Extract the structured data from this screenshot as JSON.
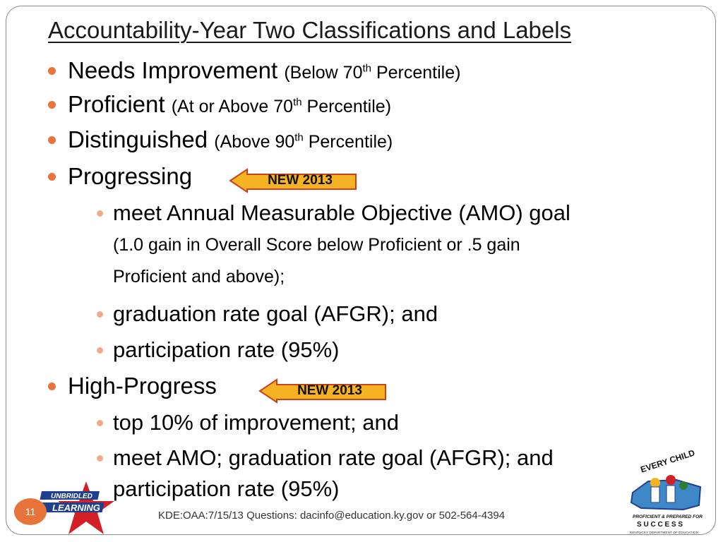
{
  "slide": {
    "title": "Accountability-Year Two Classifications and Labels",
    "bullets": [
      {
        "main": "Needs Improvement",
        "sub_pre": "(Below 70",
        "sup": "th",
        "sub_post": " Percentile)"
      },
      {
        "main": "Proficient",
        "sub_pre": "(At or Above 70",
        "sup": "th",
        "sub_post": " Percentile)"
      },
      {
        "main": "Distinguished",
        "sub_pre": "(Above 90",
        "sup": "th",
        "sub_post": " Percentile)"
      },
      {
        "main": "Progressing",
        "badge": "NEW 2013"
      },
      {
        "main": "High-Progress",
        "badge": "NEW 2013"
      }
    ],
    "progressing_items": [
      "meet Annual Measurable Objective (AMO) goal",
      "graduation rate goal (AFGR); and",
      "participation rate (95%)"
    ],
    "progressing_note_line1": "(1.0 gain in Overall Score below Proficient or .5 gain",
    "progressing_note_line2": "Proficient and above);",
    "high_progress_items": [
      "top 10% of improvement; and",
      "meet AMO; graduation rate goal (AFGR); and"
    ],
    "high_progress_continuation": "participation rate (95%)"
  },
  "footer": {
    "text": "KDE:OAA:7/15/13  Questions: dacinfo@education.ky.gov or 502-564-4394",
    "page_number": "11"
  },
  "logos": {
    "left": {
      "line1": "UNBRIDLED",
      "line2": "LEARNING"
    },
    "right": {
      "top": "EVERY CHILD",
      "middle": "PROFICIENT & PREPARED FOR",
      "success": "S U C C E S S",
      "dept": "KENTUCKY DEPARTMENT OF EDUCATION"
    }
  },
  "colors": {
    "bullet": "#e8743b",
    "sub_bullet": "#f2a98a",
    "badge": "#f5b323",
    "badge_border": "#c8431c",
    "page_circle": "#e8743b"
  }
}
